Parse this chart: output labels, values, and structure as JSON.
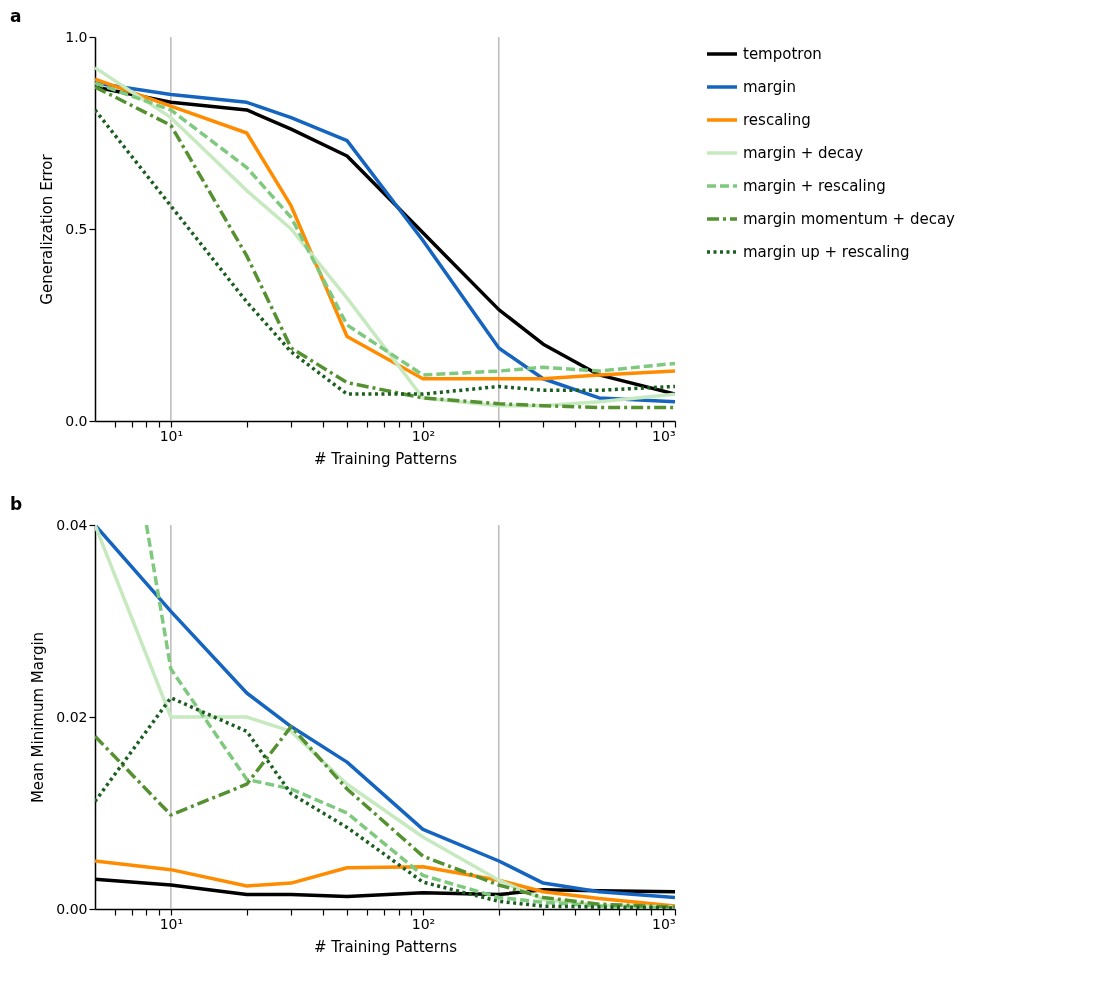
{
  "chart_data": [
    {
      "type": "line",
      "title": "a",
      "xlabel": "# Training Patterns",
      "ylabel": "Generalization Error",
      "log": "x",
      "grid": false,
      "legend": "right",
      "x": [
        5,
        10,
        20,
        30,
        50,
        100,
        200,
        300,
        500,
        1000
      ],
      "xlim": [
        5,
        1000
      ],
      "xticks": [
        {
          "value": 6,
          "label": null
        },
        {
          "value": 7,
          "label": null
        },
        {
          "value": 8,
          "label": null
        },
        {
          "value": 9,
          "label": null
        },
        {
          "value": 10,
          "label": "10¹"
        },
        {
          "value": 20,
          "label": null
        },
        {
          "value": 30,
          "label": null
        },
        {
          "value": 40,
          "label": null
        },
        {
          "value": 50,
          "label": null
        },
        {
          "value": 60,
          "label": null
        },
        {
          "value": 70,
          "label": null
        },
        {
          "value": 80,
          "label": null
        },
        {
          "value": 90,
          "label": null
        },
        {
          "value": 100,
          "label": "10²"
        },
        {
          "value": 200,
          "label": null
        },
        {
          "value": 300,
          "label": null
        },
        {
          "value": 400,
          "label": null
        },
        {
          "value": 500,
          "label": null
        },
        {
          "value": 600,
          "label": null
        },
        {
          "value": 700,
          "label": null
        },
        {
          "value": 800,
          "label": null
        },
        {
          "value": 900,
          "label": null
        },
        {
          "value": 1000,
          "label": "10³"
        }
      ],
      "ylim": [
        0,
        1
      ],
      "yticks": [
        {
          "value": 0,
          "label": "0.0"
        },
        {
          "value": 0.5,
          "label": "0.5"
        },
        {
          "value": 1,
          "label": "1.0"
        }
      ],
      "ref_lines": [
        {
          "axis": "x",
          "value": 10,
          "color": "#aaaaaa"
        },
        {
          "axis": "x",
          "value": 200,
          "color": "#aaaaaa"
        }
      ],
      "series": [
        {
          "name": "tempotron",
          "color": "#000000",
          "line_style": "solid",
          "values": [
            0.87,
            0.83,
            0.81,
            0.76,
            0.69,
            0.49,
            0.29,
            0.2,
            0.12,
            0.07
          ]
        },
        {
          "name": "margin",
          "color": "#1565c0",
          "line_style": "solid",
          "values": [
            0.88,
            0.85,
            0.83,
            0.79,
            0.73,
            0.47,
            0.19,
            0.11,
            0.06,
            0.05
          ]
        },
        {
          "name": "rescaling",
          "color": "#ff8c00",
          "line_style": "solid",
          "values": [
            0.89,
            0.82,
            0.75,
            0.56,
            0.22,
            0.11,
            0.11,
            0.11,
            0.12,
            0.13
          ]
        },
        {
          "name": "margin + decay",
          "color": "#c7e9c0",
          "line_style": "solid",
          "values": [
            0.92,
            0.79,
            0.6,
            0.5,
            0.32,
            0.06,
            0.04,
            0.04,
            0.05,
            0.07
          ]
        },
        {
          "name": "margin + rescaling",
          "color": "#7fc97f",
          "line_style": "dashed",
          "values": [
            0.88,
            0.81,
            0.66,
            0.53,
            0.25,
            0.12,
            0.13,
            0.14,
            0.13,
            0.15
          ]
        },
        {
          "name": "margin momentum + decay",
          "color": "#559130",
          "line_style": "dashdot",
          "values": [
            0.87,
            0.77,
            0.43,
            0.19,
            0.1,
            0.06,
            0.045,
            0.04,
            0.035,
            0.035
          ]
        },
        {
          "name": "margin up + rescaling",
          "color": "#1b5e20",
          "line_style": "dotted",
          "values": [
            0.81,
            0.56,
            0.31,
            0.18,
            0.07,
            0.07,
            0.09,
            0.08,
            0.08,
            0.09
          ]
        }
      ]
    },
    {
      "type": "line",
      "title": "b",
      "xlabel": "# Training Patterns",
      "ylabel": "Mean Minimum Margin",
      "log": "x",
      "grid": false,
      "legend": false,
      "x": [
        5,
        10,
        20,
        30,
        50,
        100,
        200,
        300,
        500,
        1000
      ],
      "xlim": [
        5,
        1000
      ],
      "xticks": [
        {
          "value": 6,
          "label": null
        },
        {
          "value": 7,
          "label": null
        },
        {
          "value": 8,
          "label": null
        },
        {
          "value": 9,
          "label": null
        },
        {
          "value": 10,
          "label": "10¹"
        },
        {
          "value": 20,
          "label": null
        },
        {
          "value": 30,
          "label": null
        },
        {
          "value": 40,
          "label": null
        },
        {
          "value": 50,
          "label": null
        },
        {
          "value": 60,
          "label": null
        },
        {
          "value": 70,
          "label": null
        },
        {
          "value": 80,
          "label": null
        },
        {
          "value": 90,
          "label": null
        },
        {
          "value": 100,
          "label": "10²"
        },
        {
          "value": 200,
          "label": null
        },
        {
          "value": 300,
          "label": null
        },
        {
          "value": 400,
          "label": null
        },
        {
          "value": 500,
          "label": null
        },
        {
          "value": 600,
          "label": null
        },
        {
          "value": 700,
          "label": null
        },
        {
          "value": 800,
          "label": null
        },
        {
          "value": 900,
          "label": null
        },
        {
          "value": 1000,
          "label": "10³"
        }
      ],
      "ylim": [
        0,
        0.04
      ],
      "yticks": [
        {
          "value": 0,
          "label": "0.00"
        },
        {
          "value": 0.02,
          "label": "0.02"
        },
        {
          "value": 0.04,
          "label": "0.04"
        }
      ],
      "ref_lines": [
        {
          "axis": "x",
          "value": 10,
          "color": "#aaaaaa"
        },
        {
          "axis": "x",
          "value": 200,
          "color": "#aaaaaa"
        }
      ],
      "series": [
        {
          "color": "#000000",
          "line_style": "solid",
          "values": [
            0.0031,
            0.0025,
            0.0015,
            0.0015,
            0.0013,
            0.0017,
            0.0015,
            0.002,
            0.0019,
            0.0018
          ]
        },
        {
          "color": "#1565c0",
          "line_style": "solid",
          "values": [
            0.04,
            0.031,
            0.0225,
            0.019,
            0.0153,
            0.0083,
            0.005,
            0.0027,
            0.0018,
            0.0012
          ]
        },
        {
          "color": "#ff8c00",
          "line_style": "solid",
          "values": [
            0.005,
            0.0041,
            0.0024,
            0.0027,
            0.0043,
            0.0044,
            0.003,
            0.0018,
            0.0011,
            0.0003
          ]
        },
        {
          "color": "#c7e9c0",
          "line_style": "solid",
          "values": [
            0.04,
            0.02,
            0.02,
            0.0185,
            0.013,
            0.0075,
            0.003,
            0.001,
            0.0004,
            0.0002
          ]
        },
        {
          "color": "#7fc97f",
          "line_style": "dashed",
          "x": [
            8,
            10,
            20,
            30,
            50,
            100,
            200,
            300,
            500,
            1000
          ],
          "values": [
            0.04,
            0.025,
            0.0135,
            0.0125,
            0.01,
            0.0035,
            0.0012,
            0.0007,
            0.0003,
            0.0001
          ]
        },
        {
          "color": "#559130",
          "line_style": "dashdot",
          "values": [
            0.018,
            0.0098,
            0.013,
            0.019,
            0.0125,
            0.0055,
            0.0025,
            0.0012,
            0.0005,
            0.0002
          ]
        },
        {
          "color": "#1b5e20",
          "line_style": "dotted",
          "values": [
            0.0112,
            0.022,
            0.0185,
            0.012,
            0.0085,
            0.0028,
            0.0008,
            0.0003,
            0.0002,
            0.0001
          ]
        }
      ]
    }
  ]
}
